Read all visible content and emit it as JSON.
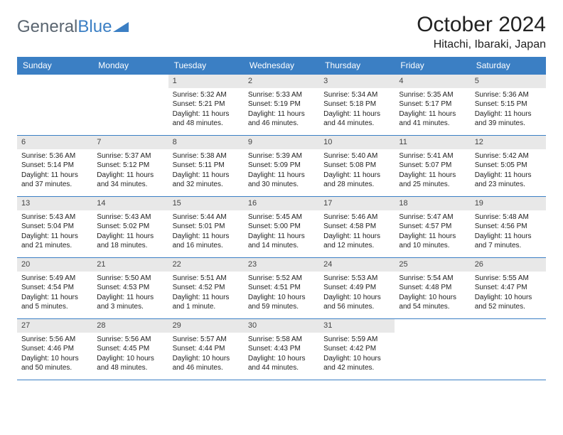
{
  "logo": {
    "text1": "General",
    "text2": "Blue"
  },
  "title": "October 2024",
  "location": "Hitachi, Ibaraki, Japan",
  "colors": {
    "header_bg": "#3b7fc4",
    "header_text": "#ffffff",
    "daynum_bg": "#e8e8e8",
    "border": "#3b7fc4",
    "logo_gray": "#5a6570",
    "logo_blue": "#3b7fc4"
  },
  "day_headers": [
    "Sunday",
    "Monday",
    "Tuesday",
    "Wednesday",
    "Thursday",
    "Friday",
    "Saturday"
  ],
  "weeks": [
    [
      null,
      null,
      {
        "n": "1",
        "sr": "5:32 AM",
        "ss": "5:21 PM",
        "dl": "11 hours and 48 minutes."
      },
      {
        "n": "2",
        "sr": "5:33 AM",
        "ss": "5:19 PM",
        "dl": "11 hours and 46 minutes."
      },
      {
        "n": "3",
        "sr": "5:34 AM",
        "ss": "5:18 PM",
        "dl": "11 hours and 44 minutes."
      },
      {
        "n": "4",
        "sr": "5:35 AM",
        "ss": "5:17 PM",
        "dl": "11 hours and 41 minutes."
      },
      {
        "n": "5",
        "sr": "5:36 AM",
        "ss": "5:15 PM",
        "dl": "11 hours and 39 minutes."
      }
    ],
    [
      {
        "n": "6",
        "sr": "5:36 AM",
        "ss": "5:14 PM",
        "dl": "11 hours and 37 minutes."
      },
      {
        "n": "7",
        "sr": "5:37 AM",
        "ss": "5:12 PM",
        "dl": "11 hours and 34 minutes."
      },
      {
        "n": "8",
        "sr": "5:38 AM",
        "ss": "5:11 PM",
        "dl": "11 hours and 32 minutes."
      },
      {
        "n": "9",
        "sr": "5:39 AM",
        "ss": "5:09 PM",
        "dl": "11 hours and 30 minutes."
      },
      {
        "n": "10",
        "sr": "5:40 AM",
        "ss": "5:08 PM",
        "dl": "11 hours and 28 minutes."
      },
      {
        "n": "11",
        "sr": "5:41 AM",
        "ss": "5:07 PM",
        "dl": "11 hours and 25 minutes."
      },
      {
        "n": "12",
        "sr": "5:42 AM",
        "ss": "5:05 PM",
        "dl": "11 hours and 23 minutes."
      }
    ],
    [
      {
        "n": "13",
        "sr": "5:43 AM",
        "ss": "5:04 PM",
        "dl": "11 hours and 21 minutes."
      },
      {
        "n": "14",
        "sr": "5:43 AM",
        "ss": "5:02 PM",
        "dl": "11 hours and 18 minutes."
      },
      {
        "n": "15",
        "sr": "5:44 AM",
        "ss": "5:01 PM",
        "dl": "11 hours and 16 minutes."
      },
      {
        "n": "16",
        "sr": "5:45 AM",
        "ss": "5:00 PM",
        "dl": "11 hours and 14 minutes."
      },
      {
        "n": "17",
        "sr": "5:46 AM",
        "ss": "4:58 PM",
        "dl": "11 hours and 12 minutes."
      },
      {
        "n": "18",
        "sr": "5:47 AM",
        "ss": "4:57 PM",
        "dl": "11 hours and 10 minutes."
      },
      {
        "n": "19",
        "sr": "5:48 AM",
        "ss": "4:56 PM",
        "dl": "11 hours and 7 minutes."
      }
    ],
    [
      {
        "n": "20",
        "sr": "5:49 AM",
        "ss": "4:54 PM",
        "dl": "11 hours and 5 minutes."
      },
      {
        "n": "21",
        "sr": "5:50 AM",
        "ss": "4:53 PM",
        "dl": "11 hours and 3 minutes."
      },
      {
        "n": "22",
        "sr": "5:51 AM",
        "ss": "4:52 PM",
        "dl": "11 hours and 1 minute."
      },
      {
        "n": "23",
        "sr": "5:52 AM",
        "ss": "4:51 PM",
        "dl": "10 hours and 59 minutes."
      },
      {
        "n": "24",
        "sr": "5:53 AM",
        "ss": "4:49 PM",
        "dl": "10 hours and 56 minutes."
      },
      {
        "n": "25",
        "sr": "5:54 AM",
        "ss": "4:48 PM",
        "dl": "10 hours and 54 minutes."
      },
      {
        "n": "26",
        "sr": "5:55 AM",
        "ss": "4:47 PM",
        "dl": "10 hours and 52 minutes."
      }
    ],
    [
      {
        "n": "27",
        "sr": "5:56 AM",
        "ss": "4:46 PM",
        "dl": "10 hours and 50 minutes."
      },
      {
        "n": "28",
        "sr": "5:56 AM",
        "ss": "4:45 PM",
        "dl": "10 hours and 48 minutes."
      },
      {
        "n": "29",
        "sr": "5:57 AM",
        "ss": "4:44 PM",
        "dl": "10 hours and 46 minutes."
      },
      {
        "n": "30",
        "sr": "5:58 AM",
        "ss": "4:43 PM",
        "dl": "10 hours and 44 minutes."
      },
      {
        "n": "31",
        "sr": "5:59 AM",
        "ss": "4:42 PM",
        "dl": "10 hours and 42 minutes."
      },
      null,
      null
    ]
  ],
  "labels": {
    "sunrise": "Sunrise:",
    "sunset": "Sunset:",
    "daylight": "Daylight:"
  }
}
